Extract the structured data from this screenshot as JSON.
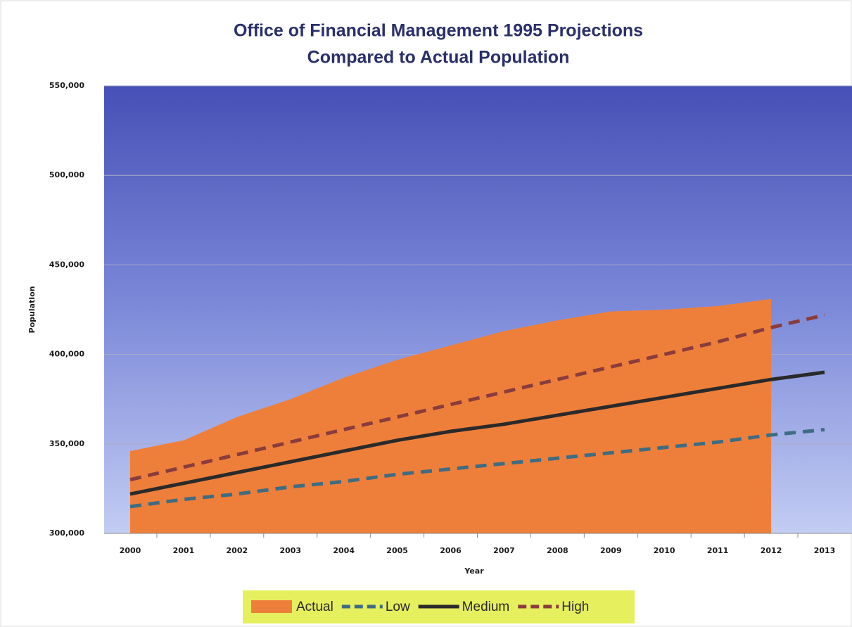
{
  "chart_data": {
    "type": "area-line",
    "title": [
      "Office of Financial Management 1995 Projections",
      "Compared to Actual Population"
    ],
    "x_label": "Year",
    "y_label": "Population",
    "categories": [
      "2000",
      "2001",
      "2002",
      "2003",
      "2004",
      "2005",
      "2006",
      "2007",
      "2008",
      "2009",
      "2010",
      "2011",
      "2012",
      "2013"
    ],
    "series": [
      {
        "name": "Actual",
        "kind": "area",
        "color": "#ee7f3b",
        "values": [
          346000,
          352000,
          365000,
          375000,
          387000,
          397000,
          405000,
          413000,
          419000,
          424000,
          425000,
          427000,
          431000,
          null
        ]
      },
      {
        "name": "Low",
        "kind": "line",
        "dash": true,
        "color": "#3e6c82",
        "values": [
          315000,
          319000,
          322000,
          326000,
          329000,
          333000,
          336000,
          339000,
          342000,
          345000,
          348000,
          351000,
          355000,
          358000
        ]
      },
      {
        "name": "Medium",
        "kind": "line",
        "dash": false,
        "color": "#2a2a2a",
        "values": [
          322000,
          328000,
          334000,
          340000,
          346000,
          352000,
          357000,
          361000,
          366000,
          371000,
          376000,
          381000,
          386000,
          390000
        ]
      },
      {
        "name": "High",
        "kind": "line",
        "dash": true,
        "color": "#8a3c3c",
        "values": [
          330000,
          337000,
          344000,
          351000,
          358000,
          365000,
          372000,
          379000,
          386000,
          393000,
          400000,
          407000,
          415000,
          422000
        ]
      }
    ],
    "ylim": [
      300000,
      550000
    ],
    "yticks": [
      {
        "value": 300000,
        "label": "300,000"
      },
      {
        "value": 350000,
        "label": "350,000"
      },
      {
        "value": 400000,
        "label": "400,000"
      },
      {
        "value": 450000,
        "label": "450,000"
      },
      {
        "value": 500000,
        "label": "500,000"
      },
      {
        "value": 550000,
        "label": "550,000"
      }
    ],
    "grid": true,
    "legend": "bottom"
  }
}
